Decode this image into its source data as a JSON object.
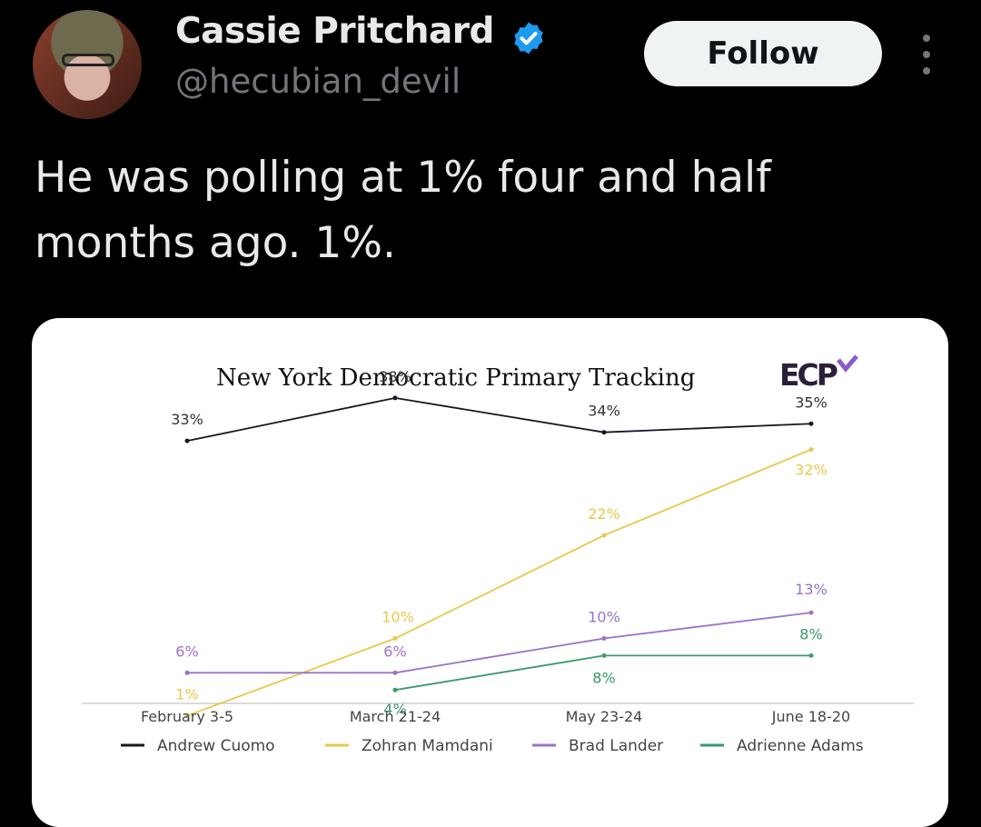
{
  "author": {
    "name": "Cassie Pritchard",
    "handle": "@hecubian_devil",
    "verified": true
  },
  "actions": {
    "follow_label": "Follow",
    "more_icon": "more-dots-icon"
  },
  "tweet": {
    "text": "He was polling at 1% four and half months ago. 1%."
  },
  "colors": {
    "background": "#000000",
    "follow_bg": "#eff3f4",
    "verified": "#1d9bf0",
    "cuomo": "#1a1424",
    "mamdani": "#e8c84a",
    "lander": "#9a72c8",
    "adams": "#3a9a6a"
  },
  "chart_data": {
    "type": "line",
    "title": "New York Democratic Primary Tracking",
    "logo": "ECP",
    "categories": [
      "February 3-5",
      "March 21-24",
      "May 23-24",
      "June 18-20"
    ],
    "ylim": [
      0,
      40
    ],
    "grid": false,
    "legend_position": "bottom",
    "series": [
      {
        "name": "Andrew Cuomo",
        "color": "#1a1424",
        "values": [
          33,
          38,
          34,
          35
        ],
        "labels": [
          "33%",
          "38%",
          "34%",
          "35%"
        ]
      },
      {
        "name": "Zohran Mamdani",
        "color": "#e8c84a",
        "values": [
          1,
          10,
          22,
          32
        ],
        "labels": [
          "1%",
          "10%",
          "22%",
          "32%"
        ]
      },
      {
        "name": "Brad Lander",
        "color": "#9a72c8",
        "values": [
          6,
          6,
          10,
          13
        ],
        "labels": [
          "6%",
          "6%",
          "10%",
          "13%"
        ]
      },
      {
        "name": "Adrienne Adams",
        "color": "#3a9a6a",
        "values": [
          null,
          4,
          8,
          8
        ],
        "labels": [
          "",
          "4%",
          "8%",
          "8%"
        ]
      }
    ]
  }
}
